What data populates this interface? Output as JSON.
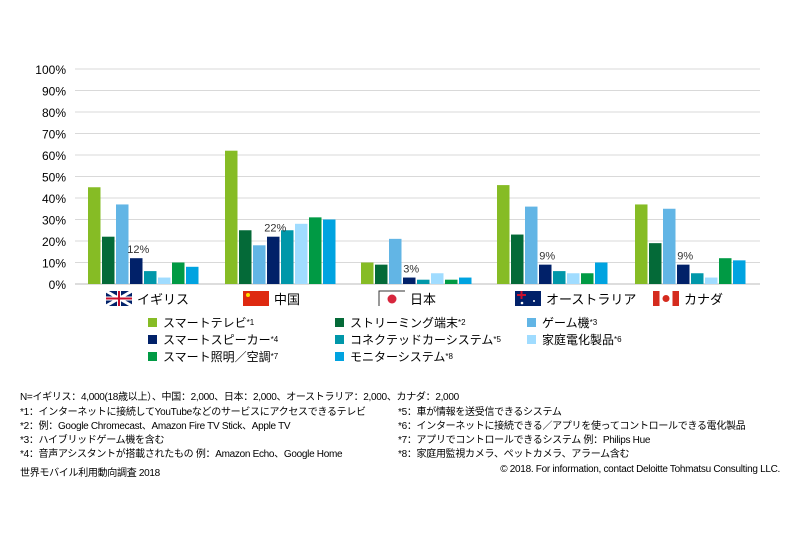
{
  "chart_data": {
    "type": "bar",
    "ylim": [
      0,
      100
    ],
    "yticks": [
      "0%",
      "10%",
      "20%",
      "30%",
      "40%",
      "50%",
      "60%",
      "70%",
      "80%",
      "90%",
      "100%"
    ],
    "grid": true,
    "categories": [
      "イギリス",
      "中国",
      "日本",
      "オーストラリア",
      "カナダ"
    ],
    "flags": [
      "uk-flag",
      "china-flag",
      "japan-flag",
      "australia-flag",
      "canada-flag"
    ],
    "series": [
      {
        "name": "スマートテレビ",
        "sup": "*1",
        "color": "#86bc25",
        "values": [
          45,
          62,
          10,
          46,
          37
        ]
      },
      {
        "name": "ストリーミング端末",
        "sup": "*2",
        "color": "#046a38",
        "values": [
          22,
          25,
          9,
          23,
          19
        ]
      },
      {
        "name": "ゲーム機",
        "sup": "*3",
        "color": "#62b5e5",
        "values": [
          37,
          18,
          21,
          36,
          35
        ]
      },
      {
        "name": "スマートスピーカー",
        "sup": "*4",
        "color": "#012169",
        "values": [
          12,
          22,
          3,
          9,
          9
        ]
      },
      {
        "name": "コネクテッドカーシステム",
        "sup": "*5",
        "color": "#0097a9",
        "values": [
          6,
          25,
          2,
          6,
          5
        ]
      },
      {
        "name": "家庭電化製品",
        "sup": "*6",
        "color": "#a0dcff",
        "values": [
          3,
          28,
          5,
          5,
          3
        ]
      },
      {
        "name": "スマート照明／空調",
        "sup": "*7",
        "color": "#009a44",
        "values": [
          10,
          31,
          2,
          5,
          12
        ]
      },
      {
        "name": "モニターシステム",
        "sup": "*8",
        "color": "#00a3e0",
        "values": [
          8,
          30,
          3,
          10,
          11
        ]
      }
    ],
    "data_labels": [
      {
        "series": 3,
        "category": 0,
        "text": "12%"
      },
      {
        "series": 3,
        "category": 1,
        "text": "22%"
      },
      {
        "series": 3,
        "category": 2,
        "text": "3%"
      },
      {
        "series": 3,
        "category": 3,
        "text": "9%"
      },
      {
        "series": 3,
        "category": 4,
        "text": "9%"
      }
    ],
    "legend": "bottom"
  },
  "notes": {
    "n": "N=イギリス：4,000(18歳以上）、中国：2,000、日本：2,000、オーストラリア：2,000、カナダ：2,000",
    "left": [
      "*1：インターネットに接続してYouTubeなどのサービスにアクセスできるテレビ",
      "*2：例：Google Chromecast、Amazon Fire TV Stick、Apple TV",
      "*3：ハイブリッドゲーム機を含む",
      "*4：音声アシスタントが搭載されたもの 例：Amazon Echo、Google Home"
    ],
    "right": [
      "*5：車が情報を送受信できるシステム",
      "*6：インターネットに接続できる／アプリを使ってコントロールできる電化製品",
      "*7：アプリでコントロールできるシステム 例：Philips Hue",
      "*8：家庭用監視カメラ、ペットカメラ、アラーム含む"
    ],
    "source": "世界モバイル利用動向調査 2018",
    "copyright": "© 2018. For information, contact Deloitte Tohmatsu Consulting LLC."
  }
}
